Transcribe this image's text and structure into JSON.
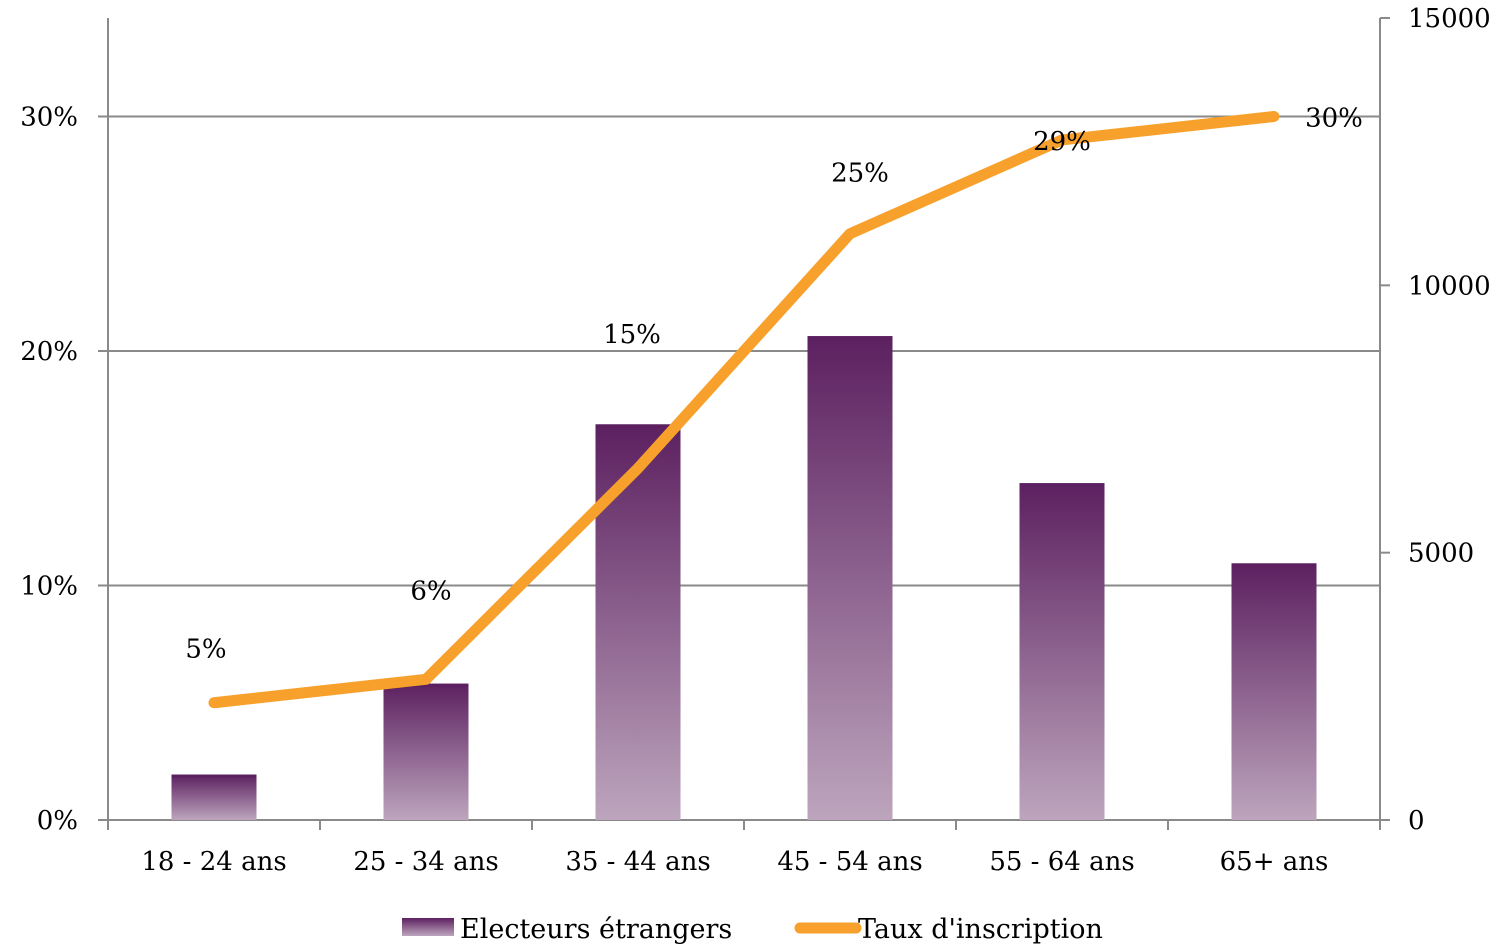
{
  "chart_data": {
    "type": "bar",
    "categories": [
      "18 - 24 ans",
      "25 - 34 ans",
      "35 - 44 ans",
      "45 - 54 ans",
      "55 - 64 ans",
      "65+ ans"
    ],
    "series": [
      {
        "name": "Electeurs étrangers",
        "type": "bar",
        "axis": "right",
        "values": [
          850,
          2550,
          7400,
          9050,
          6300,
          4800
        ],
        "color": "#5c2060"
      },
      {
        "name": "Taux d'inscription",
        "type": "line",
        "axis": "left",
        "values": [
          5,
          6,
          15,
          25,
          29,
          30
        ],
        "data_labels": [
          "5%",
          "6%",
          "15%",
          "25%",
          "29%",
          "30%"
        ],
        "color": "#f7a12c"
      }
    ],
    "y_left": {
      "ticks": [
        0,
        10,
        20,
        30
      ],
      "tick_labels": [
        "0%",
        "10%",
        "20%",
        "30%"
      ],
      "max": 30,
      "range": [
        0,
        34.2
      ]
    },
    "y_right": {
      "ticks": [
        0,
        5000,
        10000,
        15000
      ],
      "tick_labels": [
        "0",
        "5000",
        "10000",
        "15000"
      ],
      "range": [
        0,
        15000
      ]
    },
    "grid": true,
    "legend_position": "bottom",
    "title": "",
    "xlabel": "",
    "ylabel": ""
  }
}
